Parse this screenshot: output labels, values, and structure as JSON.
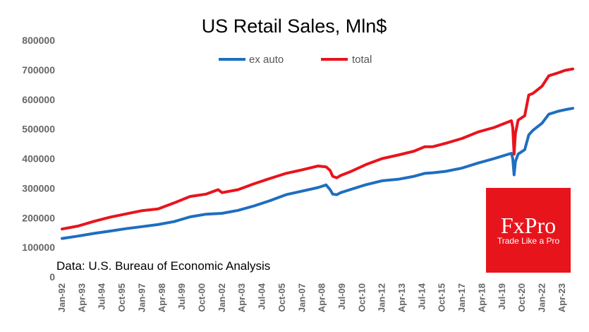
{
  "chart_data": {
    "type": "line",
    "title": "US Retail Sales, Mln$",
    "source": "Data: U.S. Bureau of Economic Analysis",
    "ylim": [
      0,
      800000
    ],
    "yticks": [
      0,
      100000,
      200000,
      300000,
      400000,
      500000,
      600000,
      700000,
      800000
    ],
    "ytick_labels": [
      "0",
      "100000",
      "200000",
      "300000",
      "400000",
      "500000",
      "600000",
      "700000",
      "800000"
    ],
    "xlim": [
      "1992-01",
      "2023-12"
    ],
    "xtick_labels": [
      "Jan-92",
      "Apr-93",
      "Jul-94",
      "Oct-95",
      "Jan-97",
      "Apr-98",
      "Jul-99",
      "Oct-00",
      "Jan-02",
      "Apr-03",
      "Jul-04",
      "Oct-05",
      "Jan-07",
      "Apr-08",
      "Jul-09",
      "Oct-10",
      "Jan-12",
      "Apr-13",
      "Jul-14",
      "Oct-15",
      "Jan-17",
      "Apr-18",
      "Jul-19",
      "Oct-20",
      "Jan-22",
      "Apr-23"
    ],
    "legend": {
      "position": "top-center",
      "order": [
        "ex auto",
        "total"
      ]
    },
    "grid": false,
    "series": [
      {
        "name": "ex auto",
        "color": "#1f6ebf",
        "points": [
          [
            "1992-01",
            130000
          ],
          [
            "1993-01",
            138000
          ],
          [
            "1994-01",
            147000
          ],
          [
            "1995-01",
            155000
          ],
          [
            "1996-01",
            163000
          ],
          [
            "1997-01",
            170000
          ],
          [
            "1998-01",
            177000
          ],
          [
            "1999-01",
            187000
          ],
          [
            "2000-01",
            203000
          ],
          [
            "2001-01",
            212000
          ],
          [
            "2002-01",
            215000
          ],
          [
            "2003-01",
            225000
          ],
          [
            "2004-01",
            240000
          ],
          [
            "2005-01",
            258000
          ],
          [
            "2006-01",
            278000
          ],
          [
            "2007-01",
            290000
          ],
          [
            "2008-01",
            302000
          ],
          [
            "2008-07",
            311000
          ],
          [
            "2008-10",
            295000
          ],
          [
            "2008-12",
            280000
          ],
          [
            "2009-03",
            278000
          ],
          [
            "2009-06",
            285000
          ],
          [
            "2010-01",
            295000
          ],
          [
            "2011-01",
            312000
          ],
          [
            "2012-01",
            325000
          ],
          [
            "2013-01",
            330000
          ],
          [
            "2014-01",
            340000
          ],
          [
            "2014-09",
            350000
          ],
          [
            "2015-03",
            352000
          ],
          [
            "2016-01",
            357000
          ],
          [
            "2017-01",
            368000
          ],
          [
            "2018-01",
            385000
          ],
          [
            "2019-01",
            400000
          ],
          [
            "2020-02",
            418000
          ],
          [
            "2020-03",
            400000
          ],
          [
            "2020-04",
            345000
          ],
          [
            "2020-05",
            390000
          ],
          [
            "2020-07",
            415000
          ],
          [
            "2020-12",
            430000
          ],
          [
            "2021-03",
            480000
          ],
          [
            "2021-06",
            495000
          ],
          [
            "2022-01",
            520000
          ],
          [
            "2022-06",
            550000
          ],
          [
            "2023-01",
            560000
          ],
          [
            "2023-06",
            565000
          ],
          [
            "2023-12",
            570000
          ]
        ]
      },
      {
        "name": "total",
        "color": "#e8141c",
        "points": [
          [
            "1992-01",
            162000
          ],
          [
            "1993-01",
            172000
          ],
          [
            "1994-01",
            188000
          ],
          [
            "1995-01",
            202000
          ],
          [
            "1996-01",
            213000
          ],
          [
            "1997-01",
            224000
          ],
          [
            "1998-01",
            230000
          ],
          [
            "1999-01",
            250000
          ],
          [
            "2000-01",
            272000
          ],
          [
            "2001-01",
            280000
          ],
          [
            "2001-10",
            295000
          ],
          [
            "2002-01",
            285000
          ],
          [
            "2003-01",
            295000
          ],
          [
            "2004-01",
            315000
          ],
          [
            "2005-01",
            333000
          ],
          [
            "2006-01",
            350000
          ],
          [
            "2007-01",
            362000
          ],
          [
            "2008-01",
            375000
          ],
          [
            "2008-07",
            372000
          ],
          [
            "2008-10",
            360000
          ],
          [
            "2008-12",
            340000
          ],
          [
            "2009-03",
            335000
          ],
          [
            "2009-06",
            343000
          ],
          [
            "2010-01",
            355000
          ],
          [
            "2011-01",
            380000
          ],
          [
            "2012-01",
            400000
          ],
          [
            "2013-01",
            412000
          ],
          [
            "2014-01",
            425000
          ],
          [
            "2014-09",
            440000
          ],
          [
            "2015-03",
            440000
          ],
          [
            "2016-01",
            452000
          ],
          [
            "2017-01",
            468000
          ],
          [
            "2018-01",
            490000
          ],
          [
            "2019-01",
            505000
          ],
          [
            "2020-02",
            528000
          ],
          [
            "2020-03",
            505000
          ],
          [
            "2020-04",
            415000
          ],
          [
            "2020-05",
            485000
          ],
          [
            "2020-07",
            530000
          ],
          [
            "2020-12",
            545000
          ],
          [
            "2021-03",
            615000
          ],
          [
            "2021-06",
            620000
          ],
          [
            "2022-01",
            645000
          ],
          [
            "2022-06",
            680000
          ],
          [
            "2023-01",
            690000
          ],
          [
            "2023-06",
            698000
          ],
          [
            "2023-12",
            703000
          ]
        ]
      }
    ]
  },
  "logo": {
    "name": "FxPro",
    "tagline": "Trade Like a Pro",
    "background": "#e8141c"
  }
}
